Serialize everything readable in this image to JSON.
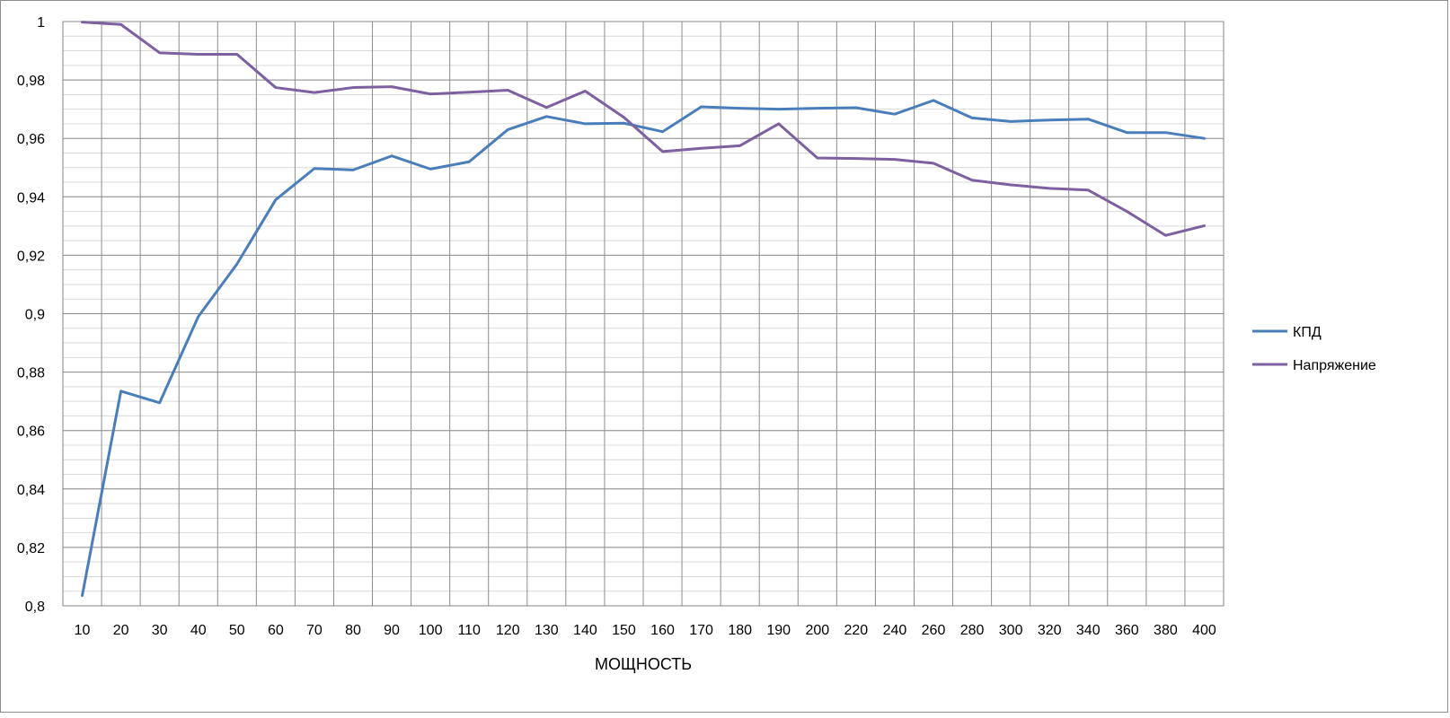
{
  "chart_data": {
    "type": "line",
    "title": "",
    "xlabel": "МОЩНОСТЬ",
    "ylabel": "",
    "categories": [
      "10",
      "20",
      "30",
      "40",
      "50",
      "60",
      "70",
      "80",
      "90",
      "100",
      "110",
      "120",
      "130",
      "140",
      "150",
      "160",
      "170",
      "180",
      "190",
      "200",
      "220",
      "240",
      "260",
      "280",
      "300",
      "320",
      "340",
      "360",
      "380",
      "400"
    ],
    "ylim": [
      0.8,
      1.0
    ],
    "y_ticks": [
      "0,8",
      "0,82",
      "0,84",
      "0,86",
      "0,88",
      "0,9",
      "0,92",
      "0,94",
      "0,96",
      "0,98",
      "1"
    ],
    "y_tick_values": [
      0.8,
      0.82,
      0.84,
      0.86,
      0.88,
      0.9,
      0.92,
      0.94,
      0.96,
      0.98,
      1.0
    ],
    "grid": true,
    "legend_position": "right",
    "series": [
      {
        "name": "КПД",
        "color": "#4a7ebb",
        "values": [
          0.8035,
          0.8735,
          0.8695,
          0.899,
          0.917,
          0.939,
          0.9497,
          0.9492,
          0.954,
          0.9495,
          0.952,
          0.963,
          0.9675,
          0.965,
          0.9652,
          0.9623,
          0.9708,
          0.9703,
          0.97,
          0.9703,
          0.9705,
          0.9683,
          0.973,
          0.967,
          0.9658,
          0.9663,
          0.9666,
          0.962,
          0.962,
          0.96
        ]
      },
      {
        "name": "Напряжение",
        "color": "#7d60a0",
        "values": [
          0.9998,
          0.999,
          0.9893,
          0.9888,
          0.9888,
          0.9774,
          0.9757,
          0.9774,
          0.9777,
          0.9752,
          0.9758,
          0.9765,
          0.9706,
          0.9762,
          0.9672,
          0.9555,
          0.9566,
          0.9575,
          0.965,
          0.9533,
          0.9531,
          0.9528,
          0.9515,
          0.9457,
          0.9441,
          0.9429,
          0.9423,
          0.935,
          0.9268,
          0.9301
        ]
      }
    ]
  }
}
